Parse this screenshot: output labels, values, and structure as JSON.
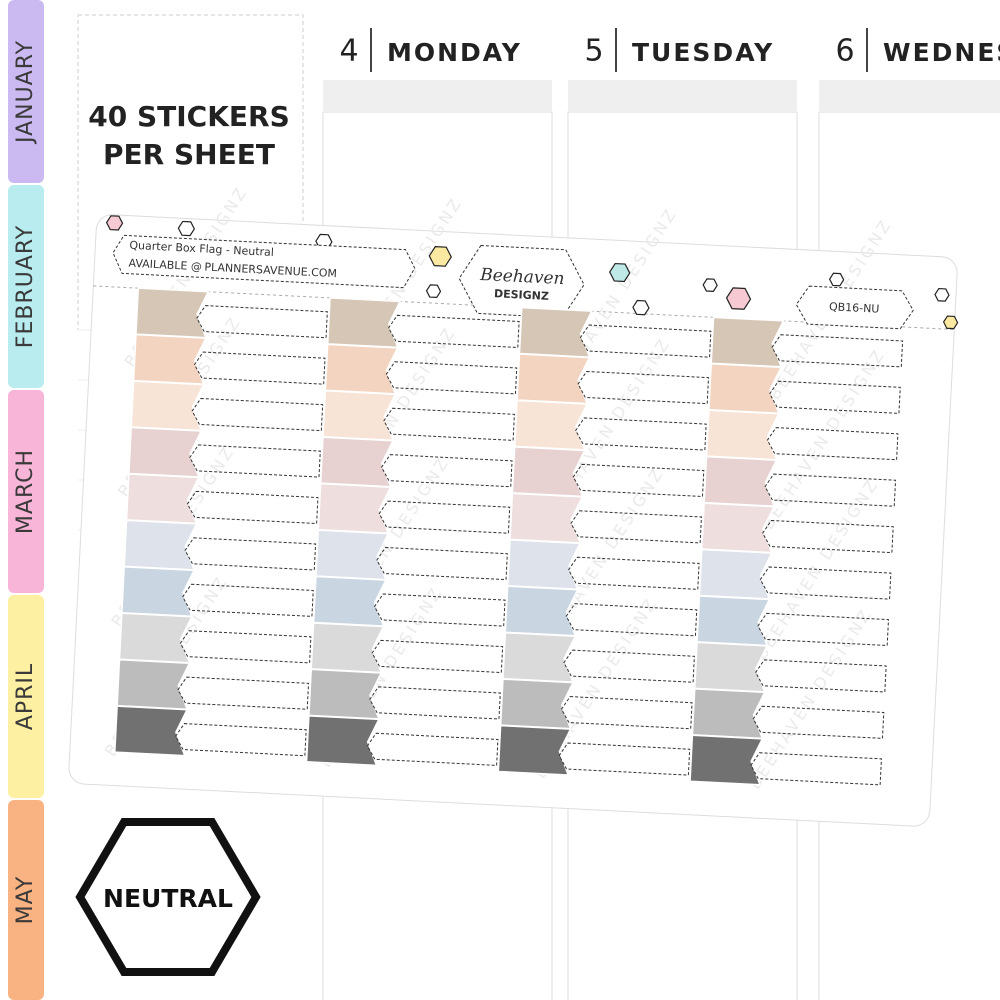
{
  "month_tabs": [
    "JANUARY",
    "FEBRUARY",
    "MARCH",
    "APRIL",
    "MAY"
  ],
  "promo": {
    "line1": "40 STICKERS",
    "line2": "PER SHEET"
  },
  "days": [
    {
      "number": "4",
      "name": "MONDAY"
    },
    {
      "number": "5",
      "name": "TUESDAY"
    },
    {
      "number": "6",
      "name": "WEDNES"
    }
  ],
  "sheet": {
    "title": "Quarter Box Flag - Neutral",
    "available": "AVAILABLE @",
    "site": "PLANNERSAVENUE.COM",
    "brand": "Beehaven",
    "brand_sub": "DESIGNZ",
    "code": "QB16-NU",
    "watermark": "BEEHAVEN DESIGNZ"
  },
  "badge": "NEUTRAL"
}
